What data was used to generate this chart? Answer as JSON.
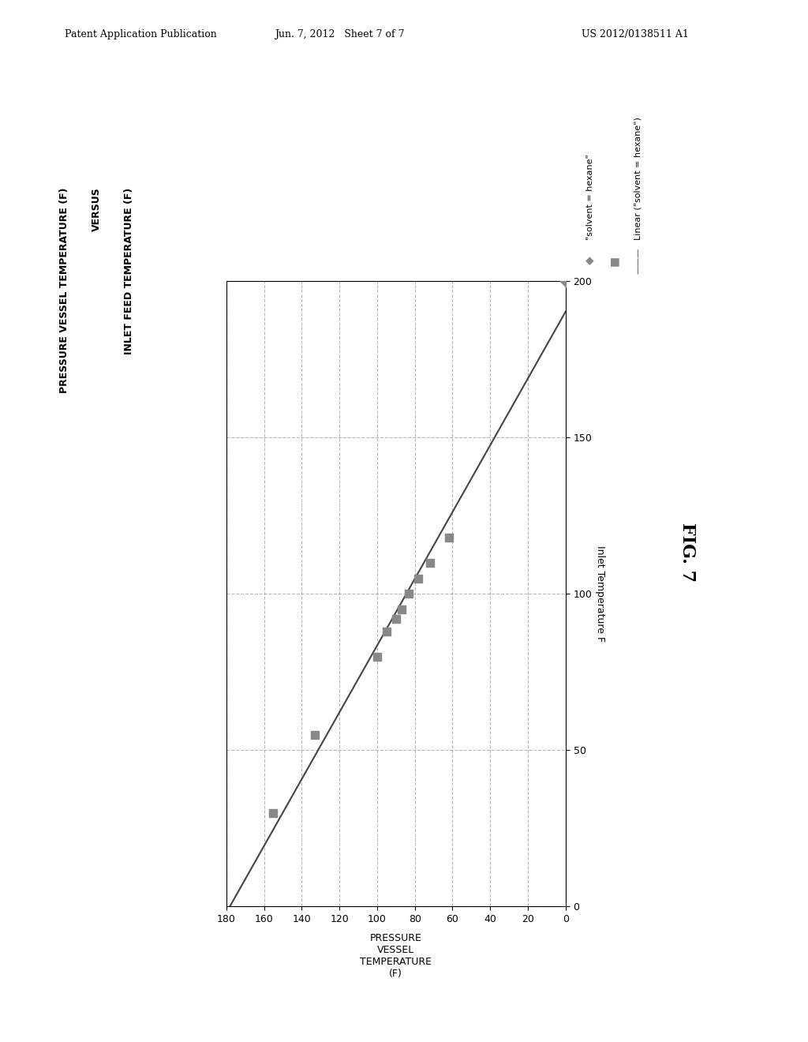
{
  "title_line1": "PRESSURE VESSEL TEMPERATURE (F)",
  "title_line2": "VERSUS",
  "title_line3": "INLET FEED TEMPERATURE (F)",
  "xlabel_rotated": "PRESSURE\nVESSEL\nTEMPERATURE\n(F)",
  "ylabel_rotated": "Inlet Temperature F",
  "xlim": [
    0,
    180
  ],
  "ylim": [
    0,
    200
  ],
  "xticks": [
    0,
    20,
    40,
    60,
    80,
    100,
    120,
    140,
    160,
    180
  ],
  "yticks": [
    0,
    50,
    100,
    150,
    200
  ],
  "scatter_x": [
    155,
    133,
    100,
    95,
    90,
    87,
    83,
    78,
    72,
    62
  ],
  "scatter_y": [
    30,
    55,
    80,
    88,
    92,
    95,
    100,
    105,
    110,
    118
  ],
  "scatter_color": "#888888",
  "scatter_marker": "s",
  "scatter_size": 55,
  "outlier_x": [
    0
  ],
  "outlier_y": [
    200
  ],
  "outlier_color": "#888888",
  "outlier_marker": "D",
  "outlier_size": 55,
  "trendline_color": "#444444",
  "legend_label_scatter": "\"solvent = hexane\"",
  "legend_label_linear": "Linear (\"solvent = hexane\")",
  "header_left": "Patent Application Publication",
  "header_center": "Jun. 7, 2012   Sheet 7 of 7",
  "header_right": "US 2012/0138511 A1",
  "fig_label": "FIG. 7",
  "background_color": "#ffffff",
  "grid_color": "#999999",
  "grid_style": "--",
  "grid_alpha": 0.7
}
